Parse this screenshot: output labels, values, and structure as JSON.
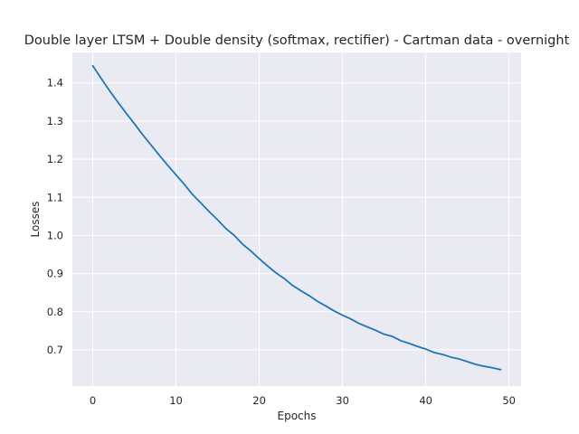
{
  "chart_data": {
    "type": "line",
    "title": "Double layer LTSM + Double density (softmax, rectifier) - Cartman data - overnight",
    "xlabel": "Epochs",
    "ylabel": "Losses",
    "xlim": [
      -2.45,
      51.45
    ],
    "ylim": [
      0.605,
      1.48
    ],
    "xticks": [
      0,
      10,
      20,
      30,
      40,
      50
    ],
    "yticks": [
      0.7,
      0.8,
      0.9,
      1.0,
      1.1,
      1.2,
      1.3,
      1.4
    ],
    "ytick_labels": [
      "0.7",
      "0.8",
      "0.9",
      "1.0",
      "1.1",
      "1.2",
      "1.3",
      "1.4"
    ],
    "xtick_labels": [
      "0",
      "10",
      "20",
      "30",
      "40",
      "50"
    ],
    "grid": true,
    "colors": {
      "background": "#eaeaf2",
      "grid": "#ffffff",
      "line": "#1f77b4"
    },
    "series": [
      {
        "x": [
          0,
          1,
          2,
          3,
          4,
          5,
          6,
          7,
          8,
          9,
          10,
          11,
          12,
          13,
          14,
          15,
          16,
          17,
          18,
          19,
          20,
          21,
          22,
          23,
          24,
          25,
          26,
          27,
          28,
          29,
          30,
          31,
          32,
          33,
          34,
          35,
          36,
          37,
          38,
          39,
          40,
          41,
          42,
          43,
          44,
          45,
          46,
          47,
          48,
          49
        ],
        "values": [
          1.445,
          1.412,
          1.38,
          1.35,
          1.321,
          1.293,
          1.264,
          1.237,
          1.21,
          1.184,
          1.159,
          1.134,
          1.107,
          1.085,
          1.062,
          1.041,
          1.018,
          1.0,
          0.977,
          0.959,
          0.939,
          0.92,
          0.902,
          0.887,
          0.869,
          0.855,
          0.842,
          0.827,
          0.815,
          0.802,
          0.791,
          0.781,
          0.769,
          0.76,
          0.751,
          0.741,
          0.735,
          0.724,
          0.717,
          0.709,
          0.702,
          0.693,
          0.688,
          0.681,
          0.676,
          0.669,
          0.662,
          0.657,
          0.653,
          0.648
        ]
      }
    ]
  }
}
